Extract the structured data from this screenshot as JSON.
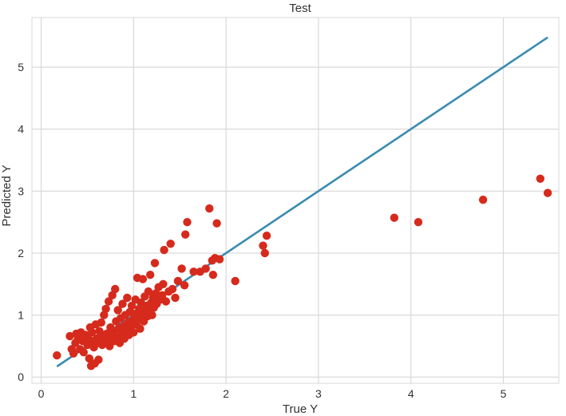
{
  "chart_data": {
    "type": "scatter",
    "title": "Test",
    "xlabel": "True Y",
    "ylabel": "Predicted Y",
    "xlim": [
      -0.1,
      5.6
    ],
    "ylim": [
      -0.1,
      5.8
    ],
    "xticks": [
      0,
      1,
      2,
      3,
      4,
      5
    ],
    "yticks": [
      0,
      1,
      2,
      3,
      4,
      5
    ],
    "grid": true,
    "colors": {
      "points": "#d62a1c",
      "line": "#3a8bb0",
      "grid": "#d9d9d9",
      "background": "#ffffff"
    },
    "series": [
      {
        "kind": "line",
        "x": [
          0.17,
          5.48
        ],
        "y": [
          0.17,
          5.48
        ]
      },
      {
        "kind": "scatter",
        "points": [
          [
            0.17,
            0.35
          ],
          [
            0.31,
            0.66
          ],
          [
            0.33,
            0.45
          ],
          [
            0.35,
            0.38
          ],
          [
            0.37,
            0.55
          ],
          [
            0.38,
            0.7
          ],
          [
            0.4,
            0.62
          ],
          [
            0.42,
            0.45
          ],
          [
            0.43,
            0.72
          ],
          [
            0.45,
            0.58
          ],
          [
            0.46,
            0.4
          ],
          [
            0.48,
            0.68
          ],
          [
            0.5,
            0.52
          ],
          [
            0.51,
            0.62
          ],
          [
            0.52,
            0.3
          ],
          [
            0.53,
            0.8
          ],
          [
            0.54,
            0.18
          ],
          [
            0.55,
            0.72
          ],
          [
            0.56,
            0.58
          ],
          [
            0.57,
            0.48
          ],
          [
            0.58,
            0.22
          ],
          [
            0.59,
            0.85
          ],
          [
            0.6,
            0.62
          ],
          [
            0.61,
            0.55
          ],
          [
            0.62,
            0.28
          ],
          [
            0.63,
            0.74
          ],
          [
            0.64,
            0.6
          ],
          [
            0.65,
            0.88
          ],
          [
            0.66,
            0.52
          ],
          [
            0.67,
            0.65
          ],
          [
            0.68,
            1.0
          ],
          [
            0.69,
            0.58
          ],
          [
            0.7,
            1.1
          ],
          [
            0.71,
            0.7
          ],
          [
            0.72,
            0.62
          ],
          [
            0.73,
            1.22
          ],
          [
            0.74,
            0.5
          ],
          [
            0.75,
            0.8
          ],
          [
            0.76,
            0.66
          ],
          [
            0.77,
            1.32
          ],
          [
            0.78,
            0.72
          ],
          [
            0.79,
            0.58
          ],
          [
            0.8,
            1.42
          ],
          [
            0.81,
            0.9
          ],
          [
            0.82,
            0.64
          ],
          [
            0.83,
            1.08
          ],
          [
            0.84,
            0.78
          ],
          [
            0.85,
            0.55
          ],
          [
            0.86,
            0.95
          ],
          [
            0.87,
            0.7
          ],
          [
            0.88,
            1.18
          ],
          [
            0.89,
            0.82
          ],
          [
            0.9,
            0.62
          ],
          [
            0.91,
            1.0
          ],
          [
            0.92,
            0.75
          ],
          [
            0.93,
            1.28
          ],
          [
            0.94,
            0.88
          ],
          [
            0.95,
            0.68
          ],
          [
            0.96,
            1.05
          ],
          [
            0.97,
            0.8
          ],
          [
            0.98,
            1.15
          ],
          [
            0.99,
            0.92
          ],
          [
            1.0,
            0.72
          ],
          [
            1.01,
            1.02
          ],
          [
            1.02,
            1.25
          ],
          [
            1.03,
            0.85
          ],
          [
            1.04,
            1.6
          ],
          [
            1.05,
            0.95
          ],
          [
            1.06,
            1.1
          ],
          [
            1.07,
            0.78
          ],
          [
            1.08,
            1.2
          ],
          [
            1.09,
            1.0
          ],
          [
            1.1,
            1.58
          ],
          [
            1.11,
            0.9
          ],
          [
            1.12,
            1.3
          ],
          [
            1.13,
            1.05
          ],
          [
            1.14,
            1.15
          ],
          [
            1.15,
            0.98
          ],
          [
            1.16,
            1.38
          ],
          [
            1.17,
            1.08
          ],
          [
            1.18,
            1.65
          ],
          [
            1.19,
            1.2
          ],
          [
            1.2,
            1.0
          ],
          [
            1.21,
            1.28
          ],
          [
            1.22,
            1.12
          ],
          [
            1.23,
            1.84
          ],
          [
            1.24,
            1.35
          ],
          [
            1.25,
            1.18
          ],
          [
            1.27,
            1.45
          ],
          [
            1.29,
            1.25
          ],
          [
            1.31,
            1.32
          ],
          [
            1.32,
            1.5
          ],
          [
            1.33,
            2.05
          ],
          [
            1.35,
            1.22
          ],
          [
            1.38,
            1.38
          ],
          [
            1.4,
            2.15
          ],
          [
            1.42,
            1.42
          ],
          [
            1.45,
            1.28
          ],
          [
            1.48,
            1.55
          ],
          [
            1.52,
            1.75
          ],
          [
            1.55,
            1.48
          ],
          [
            1.56,
            2.3
          ],
          [
            1.58,
            2.5
          ],
          [
            1.65,
            1.7
          ],
          [
            1.72,
            1.7
          ],
          [
            1.78,
            1.75
          ],
          [
            1.82,
            2.72
          ],
          [
            1.85,
            1.88
          ],
          [
            1.86,
            1.65
          ],
          [
            1.88,
            1.92
          ],
          [
            1.9,
            2.48
          ],
          [
            1.93,
            1.9
          ],
          [
            2.1,
            1.55
          ],
          [
            2.4,
            2.12
          ],
          [
            2.42,
            2.0
          ],
          [
            2.44,
            2.28
          ],
          [
            3.82,
            2.57
          ],
          [
            4.08,
            2.5
          ],
          [
            4.78,
            2.86
          ],
          [
            5.4,
            3.2
          ],
          [
            5.48,
            2.97
          ]
        ]
      }
    ]
  }
}
